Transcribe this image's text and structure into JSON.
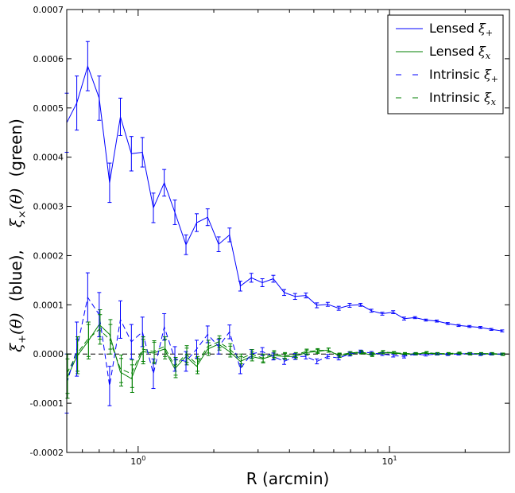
{
  "chart_data": {
    "type": "line",
    "xlabel": "R (arcmin)",
    "ylabel_parts": {
      "xi_plus": "ξ",
      "xi_plus_sub": "+",
      "theta_a": "(θ)",
      "blue": "(blue),",
      "xi_cross": "ξ",
      "xi_cross_sub": "×",
      "theta_b": "(θ)",
      "green": "(green)"
    },
    "x_scale": "log",
    "xlim": [
      0.52,
      30
    ],
    "ylim": [
      -0.0002,
      0.0007
    ],
    "x_major_ticks": [
      {
        "value": 1,
        "base": "10",
        "exp": "0"
      },
      {
        "value": 10,
        "base": "10",
        "exp": "1"
      }
    ],
    "y_ticks": [
      {
        "value": -0.0002,
        "label": "-0.0002"
      },
      {
        "value": -0.0001,
        "label": "-0.0001"
      },
      {
        "value": 0.0,
        "label": "0.0000"
      },
      {
        "value": 0.0001,
        "label": "0.0001"
      },
      {
        "value": 0.0002,
        "label": "0.0002"
      },
      {
        "value": 0.0003,
        "label": "0.0003"
      },
      {
        "value": 0.0004,
        "label": "0.0004"
      },
      {
        "value": 0.0005,
        "label": "0.0005"
      },
      {
        "value": 0.0006,
        "label": "0.0006"
      },
      {
        "value": 0.0007,
        "label": "0.0007"
      }
    ],
    "zero_line": true,
    "legend_placement": "top-right",
    "x": [
      0.52,
      0.57,
      0.63,
      0.7,
      0.77,
      0.85,
      0.94,
      1.04,
      1.15,
      1.27,
      1.4,
      1.55,
      1.71,
      1.89,
      2.09,
      2.31,
      2.55,
      2.82,
      3.12,
      3.45,
      3.81,
      4.21,
      4.65,
      5.14,
      5.68,
      6.28,
      6.94,
      7.67,
      8.47,
      9.36,
      10.34,
      11.43,
      12.63,
      13.95,
      15.42,
      17.04,
      18.83,
      20.8,
      22.99,
      25.4,
      28.07
    ],
    "series": [
      {
        "name": "Lensed ξ+",
        "label_text": "Lensed ",
        "label_sym": "ξ",
        "label_sub": "+",
        "color": "#0000ff",
        "dash": "solid",
        "y": [
          0.00047,
          0.00051,
          0.000585,
          0.00052,
          0.000348,
          0.000482,
          0.000407,
          0.00041,
          0.000297,
          0.000348,
          0.000288,
          0.000222,
          0.000267,
          0.000278,
          0.000223,
          0.000242,
          0.000138,
          0.000155,
          0.000145,
          0.000153,
          0.000125,
          0.000117,
          0.000119,
          9.9e-05,
          0.000101,
          9.3e-05,
          9.9e-05,
          0.0001,
          8.8e-05,
          8.2e-05,
          8.5e-05,
          7.2e-05,
          7.4e-05,
          6.9e-05,
          6.7e-05,
          6.2e-05,
          5.8e-05,
          5.6e-05,
          5.4e-05,
          5e-05,
          4.7e-05
        ],
        "err": [
          6e-05,
          5.5e-05,
          5e-05,
          4.5e-05,
          4e-05,
          3.8e-05,
          3.5e-05,
          3e-05,
          3e-05,
          2.7e-05,
          2.5e-05,
          2e-05,
          1.8e-05,
          1.7e-05,
          1.5e-05,
          1.4e-05,
          1e-05,
          9e-06,
          8e-06,
          7e-06,
          6e-06,
          6e-06,
          5e-06,
          5e-06,
          4e-06,
          4e-06,
          4e-06,
          3e-06,
          3e-06,
          3e-06,
          3e-06,
          3e-06,
          2e-06,
          2e-06,
          2e-06,
          2e-06,
          2e-06,
          2e-06,
          2e-06,
          2e-06,
          2e-06
        ]
      },
      {
        "name": "Lensed ξx",
        "label_text": "Lensed ",
        "label_sym": "ξ",
        "label_sub": "x",
        "color": "#007f00",
        "dash": "solid",
        "y": [
          -5e-05,
          -5e-06,
          2.5e-05,
          6e-05,
          4e-05,
          -3.7e-05,
          -5e-05,
          5e-06,
          2e-06,
          1e-05,
          -3e-05,
          -5e-06,
          -2.5e-05,
          1e-05,
          2e-05,
          5e-06,
          -1.5e-05,
          -5e-06,
          -1e-05,
          -3e-06,
          -5e-06,
          -5e-06,
          3e-06,
          5e-06,
          8e-06,
          -3e-06,
          0.0,
          3e-06,
          -2e-06,
          3e-06,
          2e-06,
          0.0,
          0.0,
          2e-06,
          0.0,
          0.0,
          1e-06,
          0.0,
          0.0,
          0.0,
          -1e-06
        ],
        "err": [
          4e-05,
          3.5e-05,
          3.5e-05,
          3e-05,
          3e-05,
          2.8e-05,
          2.8e-05,
          2.5e-05,
          2.2e-05,
          2e-05,
          1.8e-05,
          1.7e-05,
          1.5e-05,
          1.3e-05,
          1.2e-05,
          1.1e-05,
          1e-05,
          9e-06,
          8e-06,
          7e-06,
          6e-06,
          5e-06,
          5e-06,
          4e-06,
          4e-06,
          4e-06,
          3e-06,
          3e-06,
          3e-06,
          3e-06,
          2e-06,
          2e-06,
          2e-06,
          2e-06,
          2e-06,
          2e-06,
          2e-06,
          2e-06,
          2e-06,
          2e-06,
          2e-06
        ]
      },
      {
        "name": "Intrinsic ξ+",
        "label_text": "Intrinsic ",
        "label_sym": "ξ",
        "label_sub": "+",
        "color": "#0000ff",
        "dash": "dashed",
        "y": [
          -6e-05,
          1e-05,
          0.000115,
          8e-05,
          -6.5e-05,
          7e-05,
          2.5e-05,
          4.5e-05,
          -4e-05,
          5.5e-05,
          -1e-05,
          -1.5e-05,
          1e-05,
          4e-05,
          1.5e-05,
          4.5e-05,
          -3e-05,
          0.0,
          5e-06,
          -5e-06,
          -1.5e-05,
          -5e-06,
          -5e-06,
          -1.5e-05,
          -5e-06,
          -8e-06,
          0.0,
          5e-06,
          2e-06,
          0.0,
          -3e-06,
          -5e-06,
          0.0,
          -2e-06,
          0.0,
          -1e-06,
          0.0,
          1e-06,
          -1e-06,
          0.0,
          0.0
        ],
        "err": [
          6e-05,
          5.5e-05,
          5e-05,
          4.5e-05,
          4e-05,
          3.8e-05,
          3.5e-05,
          3e-05,
          3e-05,
          2.7e-05,
          2.5e-05,
          2e-05,
          1.8e-05,
          1.7e-05,
          1.5e-05,
          1.4e-05,
          1e-05,
          9e-06,
          8e-06,
          7e-06,
          6e-06,
          6e-06,
          5e-06,
          5e-06,
          4e-06,
          4e-06,
          4e-06,
          3e-06,
          3e-06,
          3e-06,
          3e-06,
          3e-06,
          2e-06,
          2e-06,
          2e-06,
          2e-06,
          2e-06,
          2e-06,
          2e-06,
          2e-06,
          2e-06
        ]
      },
      {
        "name": "Intrinsic ξx",
        "label_text": "Intrinsic ",
        "label_sym": "ξ",
        "label_sub": "x",
        "color": "#007f00",
        "dash": "dashed",
        "y": [
          -4e-05,
          0.0,
          3e-05,
          5e-05,
          3e-05,
          -3e-05,
          -4e-05,
          1e-05,
          5e-06,
          1.5e-05,
          -2.5e-05,
          0.0,
          -2e-05,
          1.5e-05,
          2.5e-05,
          1e-05,
          -1e-05,
          0.0,
          -8e-06,
          0.0,
          -3e-06,
          -2e-06,
          5e-06,
          7e-06,
          8e-06,
          -2e-06,
          2e-06,
          4e-06,
          0.0,
          4e-06,
          3e-06,
          1e-06,
          1e-06,
          3e-06,
          1e-06,
          1e-06,
          2e-06,
          1e-06,
          1e-06,
          1e-06,
          0.0
        ],
        "err": [
          4e-05,
          3.5e-05,
          3.5e-05,
          3e-05,
          3e-05,
          2.8e-05,
          2.8e-05,
          2.5e-05,
          2.2e-05,
          2e-05,
          1.8e-05,
          1.7e-05,
          1.5e-05,
          1.3e-05,
          1.2e-05,
          1.1e-05,
          1e-05,
          9e-06,
          8e-06,
          7e-06,
          6e-06,
          5e-06,
          5e-06,
          4e-06,
          4e-06,
          4e-06,
          3e-06,
          3e-06,
          3e-06,
          3e-06,
          2e-06,
          2e-06,
          2e-06,
          2e-06,
          2e-06,
          2e-06,
          2e-06,
          2e-06,
          2e-06,
          2e-06,
          2e-06
        ]
      }
    ]
  }
}
